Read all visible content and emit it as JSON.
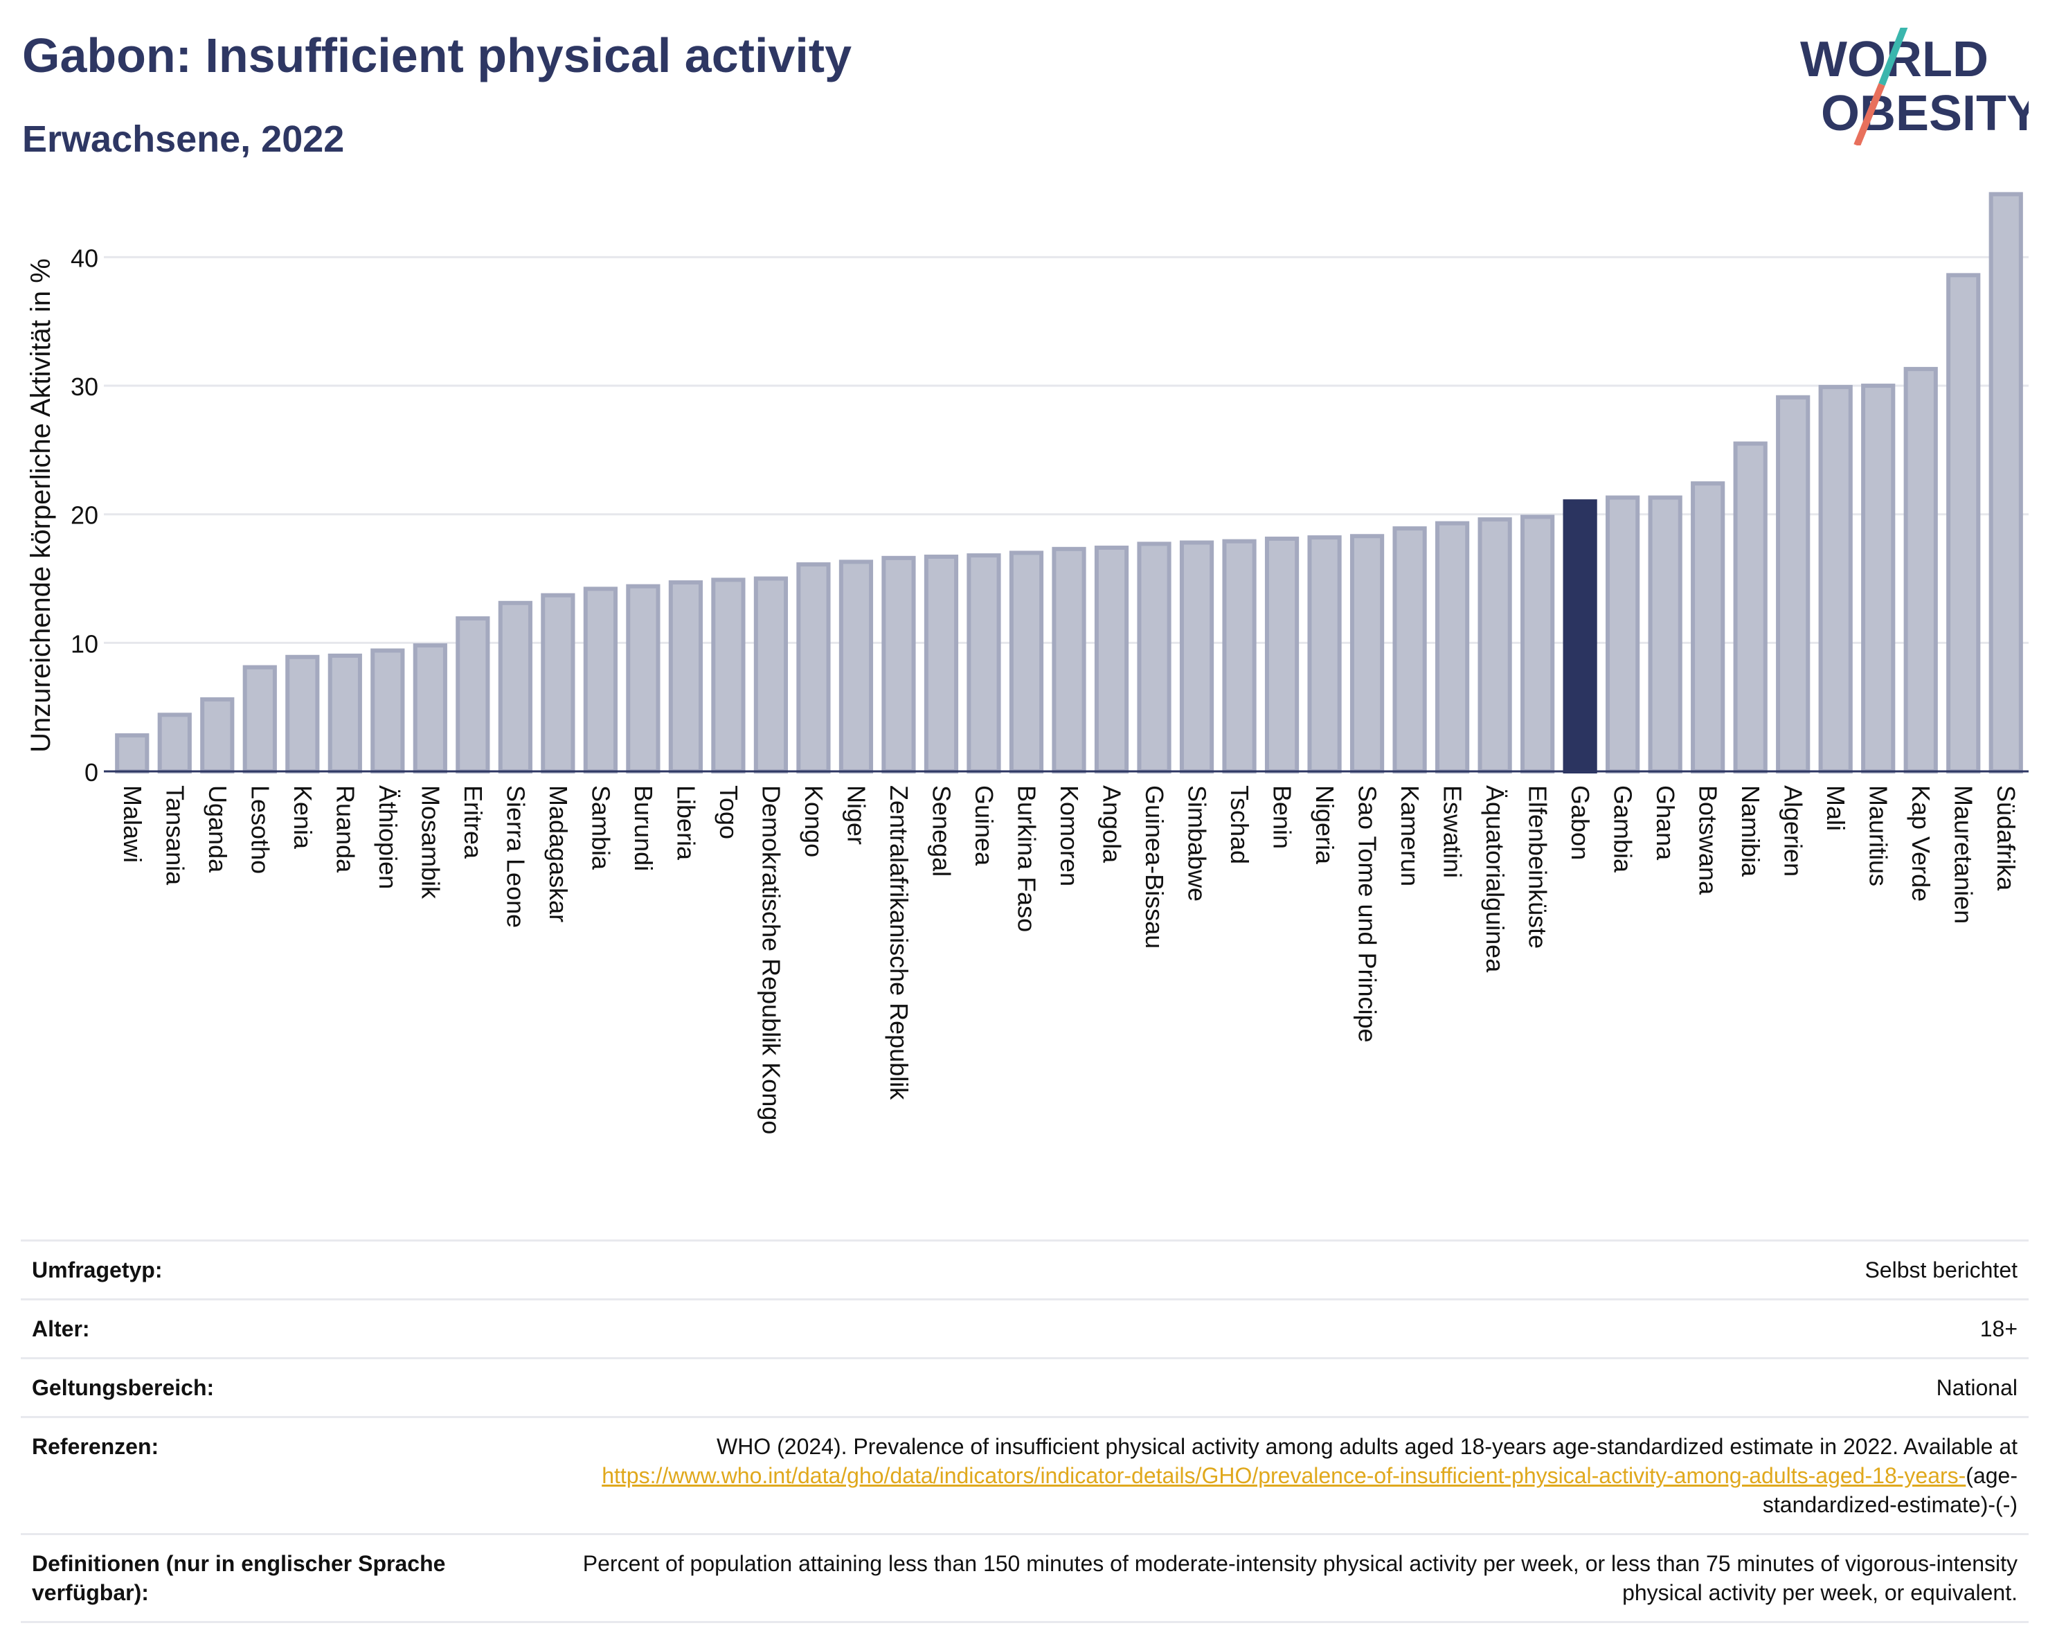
{
  "header": {
    "title": "Gabon: Insufficient physical activity",
    "subtitle": "Erwachsene, 2022"
  },
  "logo": {
    "line1": "WORLD",
    "line2": "OBESITY"
  },
  "colors": {
    "bar": "#bcc0cf",
    "bar_stroke": "#a4a9bf",
    "highlight": "#2b3460",
    "text": "#2e3763",
    "grid": "#e6e7ec",
    "link": "#e0a81c"
  },
  "chart_data": {
    "type": "bar",
    "ylabel": "Unzureichende körperliche Aktivität in %",
    "ylim": [
      0,
      46
    ],
    "yticks": [
      0,
      10,
      20,
      30,
      40
    ],
    "grid": true,
    "highlight": "Gabon",
    "categories": [
      "Malawi",
      "Tansania",
      "Uganda",
      "Lesotho",
      "Kenia",
      "Ruanda",
      "Äthiopien",
      "Mosambik",
      "Eritrea",
      "Sierra Leone",
      "Madagaskar",
      "Sambia",
      "Burundi",
      "Liberia",
      "Togo",
      "Demokratische Republik Kongo",
      "Kongo",
      "Niger",
      "Zentralafrikanische Republik",
      "Senegal",
      "Guinea",
      "Burkina Faso",
      "Komoren",
      "Angola",
      "Guinea-Bissau",
      "Simbabwe",
      "Tschad",
      "Benin",
      "Nigeria",
      "Sao Tome und Principe",
      "Kamerun",
      "Eswatini",
      "Äquatorialguinea",
      "Elfenbeinküste",
      "Gabon",
      "Gambia",
      "Ghana",
      "Botswana",
      "Namibia",
      "Algerien",
      "Mali",
      "Mauritius",
      "Kap Verde",
      "Mauretanien",
      "Südafrika"
    ],
    "values": [
      2.8,
      4.4,
      5.6,
      8.1,
      8.9,
      9.0,
      9.4,
      9.8,
      11.9,
      13.1,
      13.7,
      14.2,
      14.4,
      14.7,
      14.9,
      15.0,
      16.1,
      16.3,
      16.6,
      16.7,
      16.8,
      17.0,
      17.3,
      17.4,
      17.7,
      17.8,
      17.9,
      18.1,
      18.2,
      18.3,
      18.9,
      19.3,
      19.6,
      19.8,
      21.0,
      21.3,
      21.3,
      22.4,
      25.5,
      29.1,
      29.9,
      30.0,
      31.3,
      38.6,
      44.9
    ]
  },
  "info": [
    {
      "key": "Umfragetyp:",
      "value": "Selbst berichtet"
    },
    {
      "key": "Alter:",
      "value": "18+"
    },
    {
      "key": "Geltungsbereich:",
      "value": "National"
    },
    {
      "key": "Referenzen:",
      "value": "WHO (2024). Prevalence of insufficient physical activity among adults aged 18-years age-standardized estimate in 2022. Available at",
      "link": "https://www.who.int/data/gho/data/indicators/indicator-details/GHO/prevalence-of-insufficient-physical-activity-among-adults-aged-18-years-",
      "tail": "(age-standardized-estimate)-(-)"
    },
    {
      "key": "Definitionen (nur in englischer Sprache verfügbar):",
      "value": "Percent of population attaining less than 150 minutes of moderate-intensity physical activity per week, or less than 75 minutes of vigorous-intensity physical activity per week, or equivalent."
    }
  ]
}
